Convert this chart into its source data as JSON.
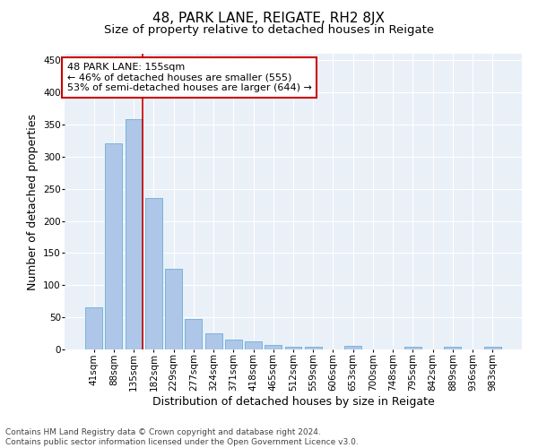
{
  "title1": "48, PARK LANE, REIGATE, RH2 8JX",
  "title2": "Size of property relative to detached houses in Reigate",
  "xlabel": "Distribution of detached houses by size in Reigate",
  "ylabel": "Number of detached properties",
  "bar_labels": [
    "41sqm",
    "88sqm",
    "135sqm",
    "182sqm",
    "229sqm",
    "277sqm",
    "324sqm",
    "371sqm",
    "418sqm",
    "465sqm",
    "512sqm",
    "559sqm",
    "606sqm",
    "653sqm",
    "700sqm",
    "748sqm",
    "795sqm",
    "842sqm",
    "889sqm",
    "936sqm",
    "983sqm"
  ],
  "bar_values": [
    65,
    320,
    358,
    235,
    126,
    47,
    25,
    15,
    12,
    7,
    4,
    4,
    0,
    5,
    0,
    0,
    4,
    0,
    4,
    0,
    4
  ],
  "bar_color": "#aec6e8",
  "bar_edge_color": "#6baed6",
  "vline_x_index": 2,
  "vline_color": "#cc0000",
  "annotation_text": "48 PARK LANE: 155sqm\n← 46% of detached houses are smaller (555)\n53% of semi-detached houses are larger (644) →",
  "annotation_box_color": "#ffffff",
  "annotation_box_edge": "#cc0000",
  "ylim": [
    0,
    460
  ],
  "yticks": [
    0,
    50,
    100,
    150,
    200,
    250,
    300,
    350,
    400,
    450
  ],
  "bg_color": "#eaf0f8",
  "footer_text": "Contains HM Land Registry data © Crown copyright and database right 2024.\nContains public sector information licensed under the Open Government Licence v3.0.",
  "title1_fontsize": 11,
  "title2_fontsize": 9.5,
  "axis_label_fontsize": 9,
  "tick_fontsize": 7.5,
  "annotation_fontsize": 8,
  "footer_fontsize": 6.5
}
